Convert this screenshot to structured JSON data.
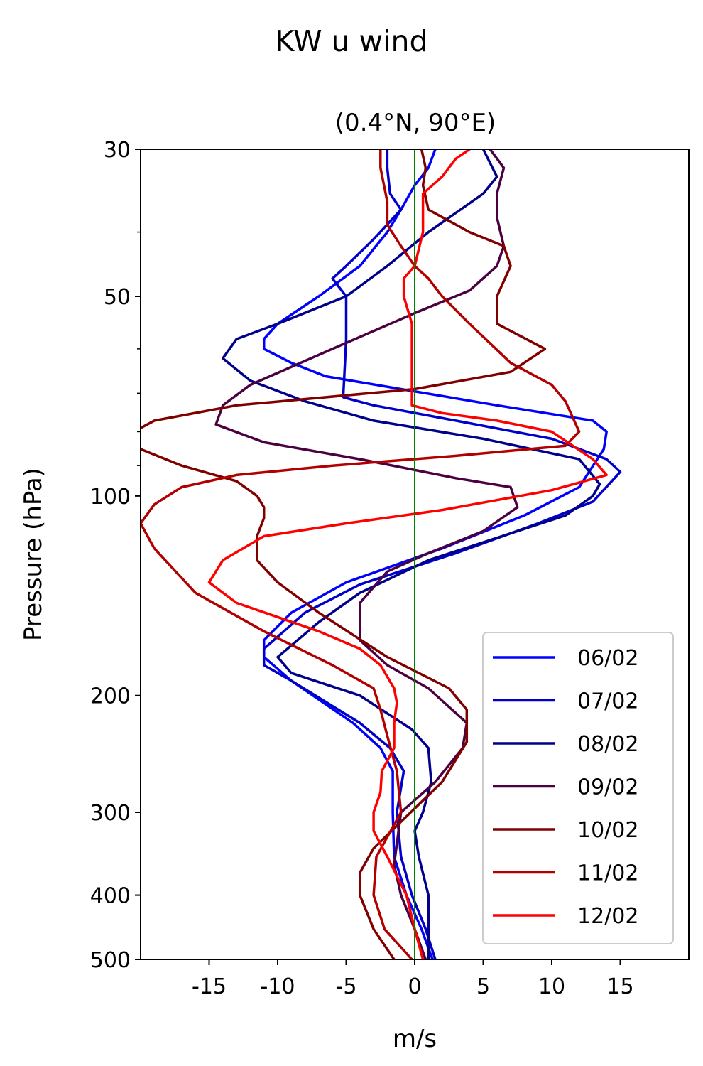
{
  "chart_data": {
    "type": "line",
    "title": "KW u wind",
    "subtitle": "(0.4°N, 90°E)",
    "xlabel": "m/s",
    "ylabel": "Pressure (hPa)",
    "xlim": [
      -20,
      20
    ],
    "ylim": [
      500,
      30
    ],
    "yscale": "log",
    "xticks": [
      -15,
      -10,
      -5,
      0,
      5,
      10,
      15
    ],
    "xtick_labels": [
      "-15",
      "-10",
      "-5",
      "0",
      "5",
      "10",
      "15"
    ],
    "yticks": [
      30,
      50,
      100,
      200,
      300,
      400,
      500
    ],
    "ytick_labels": [
      "30",
      "50",
      "100",
      "200",
      "300",
      "400",
      "500"
    ],
    "y_minor_ticks": [
      40,
      60,
      70,
      80,
      90
    ],
    "zero_line": {
      "x": 0,
      "color": "#008000"
    },
    "legend_position": "lower-right",
    "grid": false,
    "series": [
      {
        "name": "06/02",
        "color": "#0000ff",
        "points": [
          [
            1.3,
            500
          ],
          [
            0.5,
            450
          ],
          [
            -0.6,
            400
          ],
          [
            -1.5,
            350
          ],
          [
            -1.6,
            300
          ],
          [
            -1.6,
            260
          ],
          [
            -2.5,
            240
          ],
          [
            -4.5,
            220
          ],
          [
            -9,
            190
          ],
          [
            -11,
            175
          ],
          [
            -11,
            165
          ],
          [
            -9,
            150
          ],
          [
            -5,
            135
          ],
          [
            2,
            120
          ],
          [
            8,
            107
          ],
          [
            12,
            97
          ],
          [
            13.8,
            85
          ],
          [
            14,
            80
          ],
          [
            13,
            77
          ],
          [
            6,
            73
          ],
          [
            -1,
            69
          ],
          [
            -6.5,
            66
          ],
          [
            -9,
            63
          ],
          [
            -11,
            60
          ],
          [
            -11,
            58
          ],
          [
            -10,
            55
          ],
          [
            -7,
            50
          ],
          [
            -4,
            45
          ],
          [
            -2,
            40
          ],
          [
            -1,
            37
          ],
          [
            0,
            34
          ],
          [
            1,
            32
          ],
          [
            1.5,
            30
          ]
        ]
      },
      {
        "name": "07/02",
        "color": "#0000cc",
        "points": [
          [
            1.5,
            500
          ],
          [
            0.8,
            450
          ],
          [
            -0.2,
            400
          ],
          [
            -1,
            350
          ],
          [
            -1.3,
            300
          ],
          [
            -0.8,
            260
          ],
          [
            -1.8,
            240
          ],
          [
            -4,
            220
          ],
          [
            -9,
            190
          ],
          [
            -11,
            180
          ],
          [
            -11,
            170
          ],
          [
            -8,
            150
          ],
          [
            -4,
            136
          ],
          [
            3,
            122
          ],
          [
            9,
            110
          ],
          [
            13,
            102
          ],
          [
            15,
            92
          ],
          [
            14,
            88
          ],
          [
            10,
            82
          ],
          [
            3,
            77
          ],
          [
            -3,
            73
          ],
          [
            -5.2,
            71
          ],
          [
            -5.2,
            70
          ],
          [
            -5,
            58
          ],
          [
            -5,
            50
          ],
          [
            -6,
            47
          ],
          [
            -5,
            45
          ],
          [
            -3,
            41
          ],
          [
            -1,
            37
          ],
          [
            -1.8,
            35
          ],
          [
            -2,
            32
          ],
          [
            -2,
            30
          ]
        ]
      },
      {
        "name": "08/02",
        "color": "#00008b",
        "points": [
          [
            1,
            500
          ],
          [
            1,
            450
          ],
          [
            1,
            400
          ],
          [
            0.3,
            350
          ],
          [
            0,
            320
          ],
          [
            0.6,
            300
          ],
          [
            1.2,
            270
          ],
          [
            1,
            240
          ],
          [
            -0.2,
            225
          ],
          [
            -4,
            200
          ],
          [
            -9,
            185
          ],
          [
            -10,
            175
          ],
          [
            -7,
            155
          ],
          [
            -4,
            140
          ],
          [
            1,
            125
          ],
          [
            11,
            107
          ],
          [
            13,
            100
          ],
          [
            13.5,
            96
          ],
          [
            12,
            88
          ],
          [
            5,
            82
          ],
          [
            -3,
            77
          ],
          [
            -8,
            72
          ],
          [
            -12,
            67
          ],
          [
            -14,
            62
          ],
          [
            -13,
            58
          ],
          [
            -10,
            55
          ],
          [
            -5,
            50
          ],
          [
            -2,
            45
          ],
          [
            1,
            40
          ],
          [
            5,
            35
          ],
          [
            6,
            33
          ],
          [
            5,
            30
          ]
        ]
      },
      {
        "name": "09/02",
        "color": "#4b0042",
        "points": [
          [
            0.8,
            500
          ],
          [
            0,
            450
          ],
          [
            -1,
            400
          ],
          [
            -1.5,
            360
          ],
          [
            -1,
            300
          ],
          [
            1.5,
            270
          ],
          [
            3.5,
            240
          ],
          [
            3.8,
            220
          ],
          [
            1,
            195
          ],
          [
            -2,
            180
          ],
          [
            -4,
            165
          ],
          [
            -4,
            155
          ],
          [
            -4,
            145
          ],
          [
            -2,
            130
          ],
          [
            1,
            122
          ],
          [
            5,
            113
          ],
          [
            7.5,
            104
          ],
          [
            7,
            97
          ],
          [
            3,
            94
          ],
          [
            -4,
            88
          ],
          [
            -11,
            83
          ],
          [
            -14.5,
            78
          ],
          [
            -14,
            73
          ],
          [
            -12,
            68
          ],
          [
            -6,
            60
          ],
          [
            0,
            53
          ],
          [
            4,
            49
          ],
          [
            6,
            45
          ],
          [
            6.5,
            42
          ],
          [
            6,
            38
          ],
          [
            6,
            35
          ],
          [
            6.5,
            32
          ],
          [
            5.5,
            30
          ]
        ]
      },
      {
        "name": "10/02",
        "color": "#800000",
        "points": [
          [
            -1.5,
            500
          ],
          [
            -3,
            450
          ],
          [
            -4,
            400
          ],
          [
            -4,
            370
          ],
          [
            -3,
            340
          ],
          [
            -1,
            310
          ],
          [
            2,
            270
          ],
          [
            3.8,
            235
          ],
          [
            3.8,
            210
          ],
          [
            2.5,
            195
          ],
          [
            -2,
            175
          ],
          [
            -7,
            150
          ],
          [
            -10,
            135
          ],
          [
            -11.5,
            125
          ],
          [
            -11.5,
            115
          ],
          [
            -11,
            108
          ],
          [
            -11,
            104
          ],
          [
            -11.5,
            100
          ],
          [
            -13,
            95
          ],
          [
            -17,
            90
          ],
          [
            -20,
            85
          ],
          [
            -20.5,
            80
          ],
          [
            -19,
            77
          ],
          [
            -13,
            73
          ],
          [
            0,
            69
          ],
          [
            7,
            65
          ],
          [
            9.5,
            60
          ],
          [
            6,
            55
          ],
          [
            6,
            50
          ],
          [
            7,
            45
          ],
          [
            6.5,
            42
          ],
          [
            4,
            40
          ],
          [
            1,
            37
          ],
          [
            0.6,
            34
          ],
          [
            0.8,
            32
          ],
          [
            0.5,
            30
          ]
        ]
      },
      {
        "name": "11/02",
        "color": "#b20000",
        "points": [
          [
            -0.2,
            500
          ],
          [
            -2.2,
            450
          ],
          [
            -3,
            400
          ],
          [
            -2.8,
            350
          ],
          [
            -1,
            300
          ],
          [
            -1.3,
            260
          ],
          [
            -2,
            230
          ],
          [
            -2.5,
            210
          ],
          [
            -3,
            195
          ],
          [
            -6,
            180
          ],
          [
            -11,
            160
          ],
          [
            -16,
            140
          ],
          [
            -19,
            120
          ],
          [
            -20,
            110
          ],
          [
            -19,
            103
          ],
          [
            -17,
            97
          ],
          [
            -13,
            93
          ],
          [
            -6,
            90
          ],
          [
            3,
            87
          ],
          [
            11,
            84
          ],
          [
            12,
            80
          ],
          [
            11,
            72
          ],
          [
            10,
            68
          ],
          [
            7,
            63
          ],
          [
            4,
            55
          ],
          [
            2,
            50
          ],
          [
            1,
            47
          ],
          [
            0,
            45
          ],
          [
            -1,
            42
          ],
          [
            -2,
            39
          ],
          [
            -2,
            36
          ],
          [
            -2.5,
            32
          ],
          [
            -2.5,
            30
          ]
        ]
      },
      {
        "name": "12/02",
        "color": "#ff0000",
        "points": [
          [
            0.6,
            500
          ],
          [
            0,
            450
          ],
          [
            -0.6,
            400
          ],
          [
            -2,
            350
          ],
          [
            -3,
            320
          ],
          [
            -3,
            300
          ],
          [
            -2.5,
            280
          ],
          [
            -2.4,
            260
          ],
          [
            -1.5,
            240
          ],
          [
            -1.5,
            220
          ],
          [
            -1.3,
            205
          ],
          [
            -1.5,
            195
          ],
          [
            -2.5,
            180
          ],
          [
            -4,
            170
          ],
          [
            -7,
            160
          ],
          [
            -13,
            145
          ],
          [
            -15,
            135
          ],
          [
            -14,
            125
          ],
          [
            -11,
            115
          ],
          [
            -5,
            110
          ],
          [
            2,
            105
          ],
          [
            10,
            98
          ],
          [
            14,
            93
          ],
          [
            13,
            88
          ],
          [
            10,
            80
          ],
          [
            6,
            77
          ],
          [
            2,
            75
          ],
          [
            -0.2,
            73
          ],
          [
            -0.2,
            63
          ],
          [
            -0.2,
            55
          ],
          [
            -0.8,
            50
          ],
          [
            -0.8,
            47
          ],
          [
            0,
            45
          ],
          [
            0.6,
            40
          ],
          [
            0.6,
            35
          ],
          [
            2,
            33
          ],
          [
            3,
            31
          ],
          [
            4,
            30
          ]
        ]
      }
    ]
  }
}
